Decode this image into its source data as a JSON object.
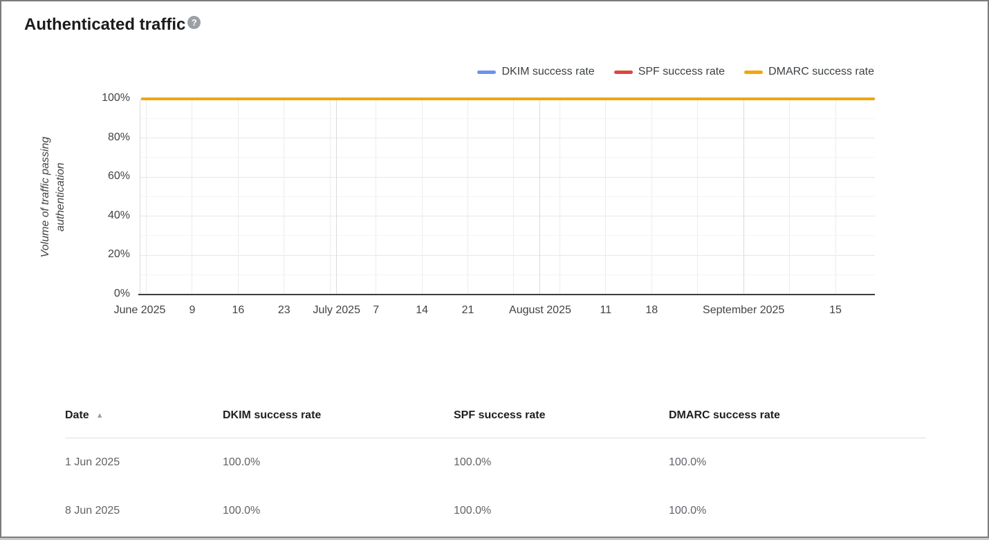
{
  "header": {
    "title": "Authenticated traffic",
    "help_glyph": "?"
  },
  "legend": {
    "items": [
      {
        "label": "DKIM success rate",
        "color": "#6a94e8"
      },
      {
        "label": "SPF success rate",
        "color": "#db4a3d"
      },
      {
        "label": "DMARC success rate",
        "color": "#f2a60b"
      }
    ]
  },
  "chart_data": {
    "type": "line",
    "title": "",
    "xlabel": "",
    "ylabel": "Volume of traffic passing authentication",
    "ylabel_lines": [
      "Volume of traffic passing",
      "authentication"
    ],
    "ylim": [
      0,
      100
    ],
    "grid": true,
    "legend_position": "top-right",
    "x_start": "1 Jun 2025",
    "x_end": "21 Sep 2025",
    "x_span_days": 112,
    "y_ticks": [
      {
        "label": "100%",
        "value": 100
      },
      {
        "label": "80%",
        "value": 80
      },
      {
        "label": "60%",
        "value": 60
      },
      {
        "label": "40%",
        "value": 40
      },
      {
        "label": "20%",
        "value": 20
      },
      {
        "label": "0%",
        "value": 0
      }
    ],
    "x_ticks": [
      {
        "label": "June 2025",
        "day": 0
      },
      {
        "label": "9",
        "day": 8
      },
      {
        "label": "16",
        "day": 15
      },
      {
        "label": "23",
        "day": 22
      },
      {
        "label": "July 2025",
        "day": 30
      },
      {
        "label": "7",
        "day": 36
      },
      {
        "label": "14",
        "day": 43
      },
      {
        "label": "21",
        "day": 50
      },
      {
        "label": "August 2025",
        "day": 61
      },
      {
        "label": "11",
        "day": 71
      },
      {
        "label": "18",
        "day": 78
      },
      {
        "label": "September 2025",
        "day": 92
      },
      {
        "label": "15",
        "day": 106
      }
    ],
    "week_gridline_days": [
      1,
      8,
      15,
      22,
      29,
      36,
      43,
      50,
      57,
      64,
      71,
      78,
      85,
      92,
      99,
      106
    ],
    "month_gridline_days": [
      0,
      30,
      61,
      92
    ],
    "x_points": [
      "1 Jun 2025",
      "8 Jun 2025",
      "15 Jun 2025",
      "22 Jun 2025",
      "29 Jun 2025",
      "6 Jul 2025",
      "13 Jul 2025",
      "20 Jul 2025",
      "27 Jul 2025",
      "3 Aug 2025",
      "10 Aug 2025",
      "17 Aug 2025",
      "24 Aug 2025",
      "31 Aug 2025",
      "7 Sep 2025",
      "14 Sep 2025",
      "21 Sep 2025"
    ],
    "series": [
      {
        "name": "DKIM success rate",
        "color": "#6a94e8",
        "values": [
          100,
          100,
          100,
          100,
          100,
          100,
          100,
          100,
          100,
          100,
          100,
          100,
          100,
          100,
          100,
          100,
          100
        ]
      },
      {
        "name": "SPF success rate",
        "color": "#db4a3d",
        "values": [
          100,
          100,
          100,
          100,
          100,
          100,
          100,
          100,
          100,
          100,
          100,
          100,
          100,
          100,
          100,
          100,
          100
        ]
      },
      {
        "name": "DMARC success rate",
        "color": "#f2a60b",
        "values": [
          100,
          100,
          100,
          100,
          100,
          100,
          100,
          100,
          100,
          100,
          100,
          100,
          100,
          100,
          100,
          100,
          100
        ]
      }
    ]
  },
  "table": {
    "columns": [
      "Date",
      "DKIM success rate",
      "SPF success rate",
      "DMARC success rate"
    ],
    "sort_column": "Date",
    "sort_direction": "ascending",
    "sort_icon": "▲",
    "rows": [
      [
        "1 Jun 2025",
        "100.0%",
        "100.0%",
        "100.0%"
      ],
      [
        "8 Jun 2025",
        "100.0%",
        "100.0%",
        "100.0%"
      ]
    ]
  },
  "colors": {
    "dkim_blue": "#6a94e8",
    "spf_red": "#db4a3d",
    "dmarc_orange": "#f2a60b",
    "axis_text": "#424242",
    "cell_text": "#5f6368",
    "frame_border": "#7b7b7b"
  }
}
